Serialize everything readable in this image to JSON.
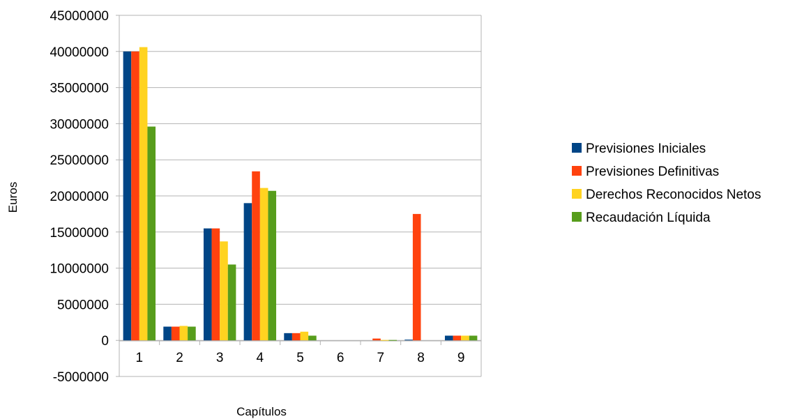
{
  "chart_data": {
    "type": "bar",
    "title": "",
    "xlabel": "Capítulos",
    "ylabel": "Euros",
    "ylim": [
      -5000000,
      45000000
    ],
    "yticks": [
      -5000000,
      0,
      5000000,
      10000000,
      15000000,
      20000000,
      25000000,
      30000000,
      35000000,
      40000000,
      45000000
    ],
    "ytick_labels": [
      "-5000000",
      "0",
      "5000000",
      "10000000",
      "15000000",
      "20000000",
      "25000000",
      "30000000",
      "35000000",
      "40000000",
      "45000000"
    ],
    "categories": [
      "1",
      "2",
      "3",
      "4",
      "5",
      "6",
      "7",
      "8",
      "9"
    ],
    "grid": "horizontal",
    "legend_position": "right",
    "series": [
      {
        "name": "Previsiones Iniciales",
        "color": "#004586",
        "values": [
          40000000,
          1900000,
          15500000,
          19000000,
          1000000,
          0,
          0,
          100000,
          650000
        ]
      },
      {
        "name": "Previsiones Definitivas",
        "color": "#ff420e",
        "values": [
          40000000,
          1900000,
          15500000,
          23400000,
          1000000,
          0,
          250000,
          17500000,
          650000
        ]
      },
      {
        "name": "Derechos Reconocidos Netos",
        "color": "#ffd320",
        "values": [
          40600000,
          2000000,
          13700000,
          21100000,
          1200000,
          0,
          50000,
          0,
          650000
        ]
      },
      {
        "name": "Recaudación Líquida",
        "color": "#579d1c",
        "values": [
          29600000,
          1900000,
          10500000,
          20700000,
          650000,
          0,
          50000,
          0,
          650000
        ]
      }
    ]
  }
}
